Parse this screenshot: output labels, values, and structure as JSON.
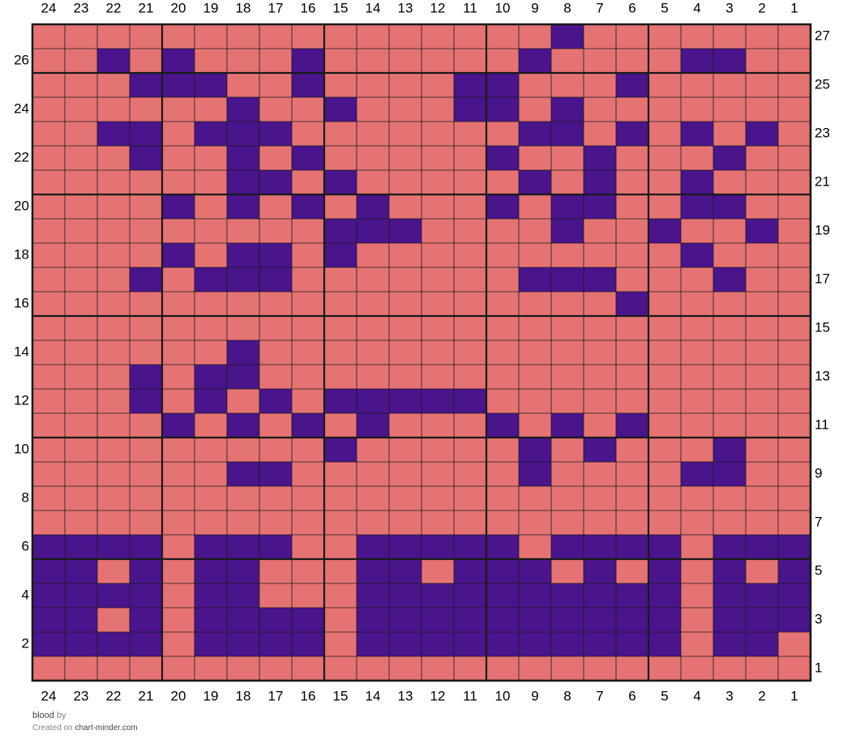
{
  "chart_title": "blood",
  "by_text": "by",
  "credit_prefix": "Created on",
  "credit_site": "chart-minder.com",
  "colors": {
    "background": "#E57373",
    "stitch": "#4A148C",
    "grid_line": "#1a1a1a",
    "label_text": "#000000"
  },
  "chart_data": {
    "type": "grid",
    "columns": 24,
    "rows": 27,
    "column_labels_top": [
      "24",
      "23",
      "22",
      "21",
      "20",
      "19",
      "18",
      "17",
      "16",
      "15",
      "14",
      "13",
      "12",
      "11",
      "10",
      "9",
      "8",
      "7",
      "6",
      "5",
      "4",
      "3",
      "2",
      "1"
    ],
    "column_labels_bottom": [
      "24",
      "23",
      "22",
      "21",
      "20",
      "19",
      "18",
      "17",
      "16",
      "15",
      "14",
      "13",
      "12",
      "11",
      "10",
      "9",
      "8",
      "7",
      "6",
      "5",
      "4",
      "3",
      "2",
      "1"
    ],
    "row_labels_left": [
      "26",
      "24",
      "22",
      "20",
      "18",
      "16",
      "14",
      "12",
      "10",
      "8",
      "6",
      "4",
      "2"
    ],
    "row_labels_right": [
      "27",
      "25",
      "23",
      "21",
      "19",
      "17",
      "15",
      "13",
      "11",
      "9",
      "7",
      "5",
      "3",
      "1"
    ],
    "grid_key": {
      "0": "background",
      "1": "stitch"
    },
    "rows_top_to_bottom": [
      "000000000000000010000000",
      "001010001000000100001100",
      "000111001000011000100000",
      "000000100100011010000000",
      "001101110000000110101010",
      "000100101000001001000100",
      "000000110100000101001000",
      "000010101010001011001100",
      "000000000111000010010010",
      "000010110100000000001000",
      "000101110000000111000100",
      "000000000000000000100000",
      "000000000000000000000000",
      "000000100000000000000000",
      "000101100000000000000000",
      "000101010111110000000000",
      "000010101010001010100000",
      "000000000100000101000100",
      "000000110000000100001100",
      "000000000000000000000000",
      "000000000000000000000000",
      "111101110011111011110111",
      "110101100011011101010101",
      "111101100011111111110111",
      "110101111011111111110111",
      "111101111011111111110110",
      "000000000000000000000000"
    ]
  }
}
